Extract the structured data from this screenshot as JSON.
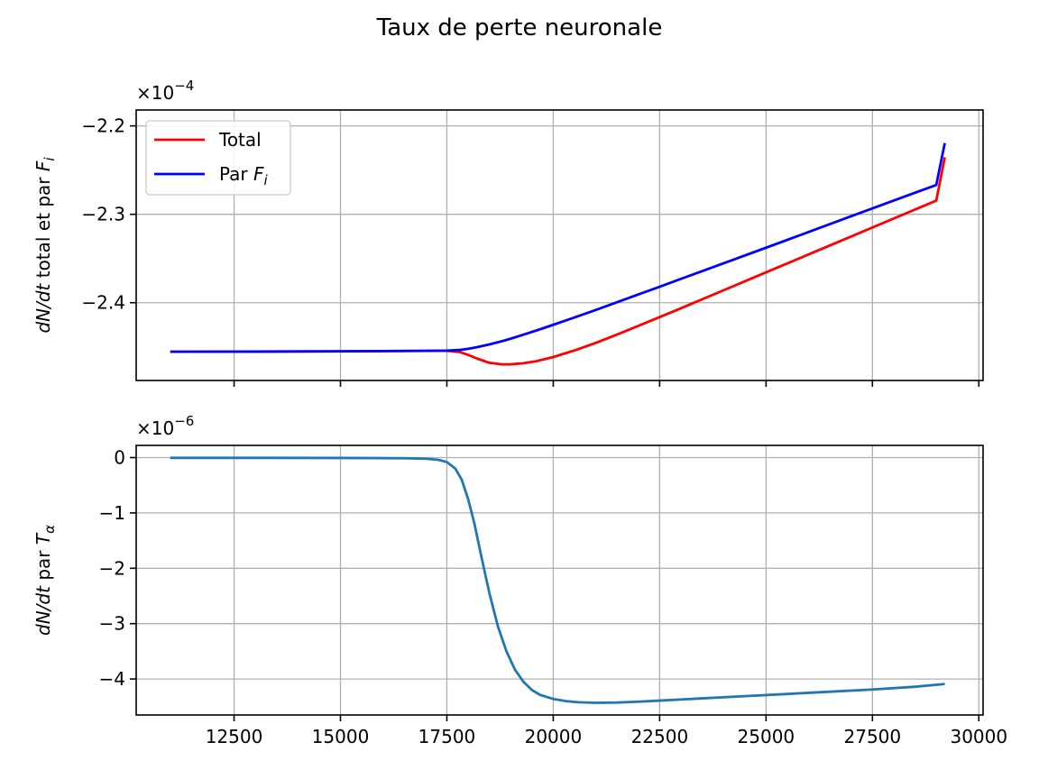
{
  "figure": {
    "title": "Taux de perte neuronale"
  },
  "chart_data": [
    {
      "type": "line",
      "title": "",
      "xlabel": "",
      "ylabel": "dN/dt total et par F_i",
      "ylabel_parts": {
        "italic": "dN/dt",
        "plain": " total et par ",
        "var": "F",
        "sub": "i"
      },
      "multiplier": {
        "base": "×10",
        "exp": "−4"
      },
      "xlim": [
        10200,
        30100
      ],
      "ylim": [
        -2.488,
        -2.182
      ],
      "xticks": [
        12500,
        15000,
        17500,
        20000,
        22500,
        25000,
        27500,
        30000
      ],
      "show_xtick_labels": false,
      "yticks": [
        -2.4,
        -2.3,
        -2.2
      ],
      "ytick_labels": [
        "−2.4",
        "−2.3",
        "−2.2"
      ],
      "grid": true,
      "legend": {
        "position": "upper left",
        "entries": [
          {
            "label": "Total",
            "label_var": "",
            "label_sub": "",
            "color": "#ff0000"
          },
          {
            "label": "Par ",
            "label_var": "F",
            "label_sub": "i",
            "color": "#0000ff"
          }
        ]
      },
      "series": [
        {
          "name": "Total",
          "color": "#ff0000",
          "x": [
            11000,
            13000,
            15000,
            17000,
            17500,
            17800,
            18000,
            18200,
            18500,
            18800,
            19000,
            19300,
            19600,
            20000,
            20500,
            21000,
            21500,
            22000,
            22500,
            23000,
            24000,
            25000,
            26000,
            27000,
            28000,
            29000,
            29200
          ],
          "y": [
            -2.4555,
            -2.4553,
            -2.455,
            -2.4545,
            -2.4544,
            -2.4558,
            -2.459,
            -2.463,
            -2.468,
            -2.4698,
            -2.4697,
            -2.4685,
            -2.4662,
            -2.4615,
            -2.454,
            -2.4455,
            -2.436,
            -2.4262,
            -2.4163,
            -2.4063,
            -2.386,
            -2.3657,
            -2.3454,
            -2.3251,
            -2.3048,
            -2.2845,
            -2.2355
          ]
        },
        {
          "name": "Par F_i",
          "color": "#0000ff",
          "x": [
            11000,
            13000,
            15000,
            17000,
            17500,
            17800,
            18000,
            18200,
            18500,
            18800,
            19000,
            19300,
            19600,
            20000,
            20500,
            21000,
            21500,
            22000,
            22500,
            23000,
            24000,
            25000,
            26000,
            27000,
            28000,
            29000,
            29200
          ],
          "y": [
            -2.4555,
            -2.4553,
            -2.455,
            -2.4545,
            -2.4542,
            -2.4535,
            -2.4522,
            -2.4504,
            -2.4472,
            -2.4435,
            -2.4407,
            -2.4362,
            -2.4315,
            -2.425,
            -2.4167,
            -2.4082,
            -2.3995,
            -2.3907,
            -2.382,
            -2.3731,
            -2.3555,
            -2.3378,
            -2.32,
            -2.3022,
            -2.2845,
            -2.2668,
            -2.2195
          ]
        }
      ]
    },
    {
      "type": "line",
      "title": "",
      "xlabel": "",
      "ylabel": "dN/dt par T_α",
      "ylabel_parts": {
        "italic": "dN/dt",
        "plain": " par ",
        "var": "T",
        "sub": "α"
      },
      "multiplier": {
        "base": "×10",
        "exp": "−6"
      },
      "xlim": [
        10200,
        30100
      ],
      "ylim": [
        -4.65,
        0.22
      ],
      "xticks": [
        12500,
        15000,
        17500,
        20000,
        22500,
        25000,
        27500,
        30000
      ],
      "xtick_labels": [
        "12500",
        "15000",
        "17500",
        "20000",
        "22500",
        "25000",
        "27500",
        "30000"
      ],
      "show_xtick_labels": true,
      "yticks": [
        0,
        -1,
        -2,
        -3,
        -4
      ],
      "ytick_labels": [
        "0",
        "−1",
        "−2",
        "−3",
        "−4"
      ],
      "grid": true,
      "series": [
        {
          "name": "",
          "color": "#1f77b4",
          "x": [
            11000,
            13000,
            15000,
            16500,
            17000,
            17300,
            17500,
            17700,
            17850,
            18000,
            18150,
            18300,
            18500,
            18700,
            18900,
            19100,
            19300,
            19500,
            19700,
            20000,
            20300,
            20600,
            21000,
            21500,
            22000,
            22500,
            23500,
            24500,
            25500,
            26500,
            27500,
            28500,
            29200
          ],
          "y": [
            -0.005,
            -0.005,
            -0.007,
            -0.012,
            -0.02,
            -0.04,
            -0.08,
            -0.2,
            -0.4,
            -0.75,
            -1.2,
            -1.75,
            -2.45,
            -3.05,
            -3.5,
            -3.83,
            -4.05,
            -4.2,
            -4.29,
            -4.36,
            -4.4,
            -4.42,
            -4.43,
            -4.425,
            -4.41,
            -4.39,
            -4.35,
            -4.31,
            -4.27,
            -4.23,
            -4.19,
            -4.14,
            -4.09
          ]
        }
      ]
    }
  ]
}
